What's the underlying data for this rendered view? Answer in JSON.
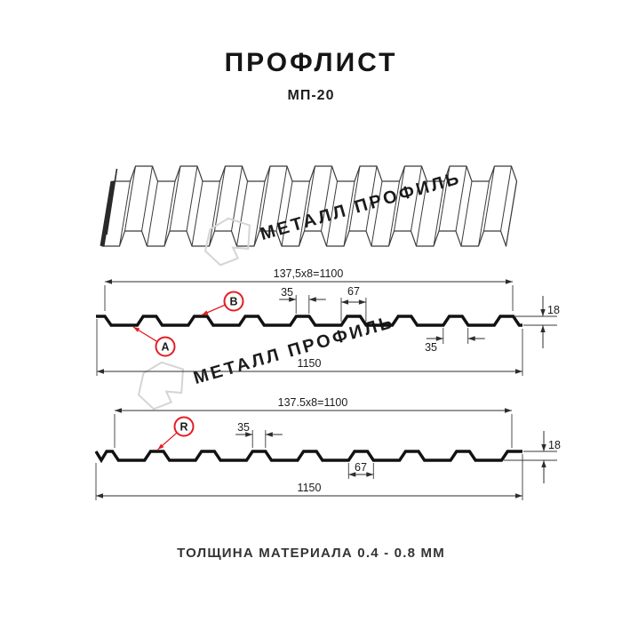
{
  "header": {
    "title": "ПРОФЛИСТ",
    "subtitle": "МП-20"
  },
  "watermark": {
    "brand": "МЕТАЛЛ ПРОФИЛЬ"
  },
  "profile_top": {
    "side_labels": {
      "bottom_face": "A",
      "top_face": "B"
    },
    "dims": {
      "pitch": "137,5x8=1100",
      "crest_top_width": "35",
      "crest_base_width": "67",
      "height": "18",
      "crest_bottom_width": "35",
      "overall_width": "1150"
    }
  },
  "profile_bottom": {
    "side_labels": {
      "top_face": "R"
    },
    "dims": {
      "pitch": "137.5x8=1100",
      "crest_top_width": "35",
      "crest_base_width": "67",
      "height": "18",
      "overall_width": "1150"
    }
  },
  "footer": {
    "material_note": "ТОЛЩИНА МАТЕРИАЛА 0.4 - 0.8 ММ"
  },
  "colors": {
    "accent_red": "#e31e24",
    "line": "#2d2d2d",
    "profile": "#121212",
    "watermark": "#d4d4d4",
    "sheet_outline": "#3b3b3b"
  }
}
